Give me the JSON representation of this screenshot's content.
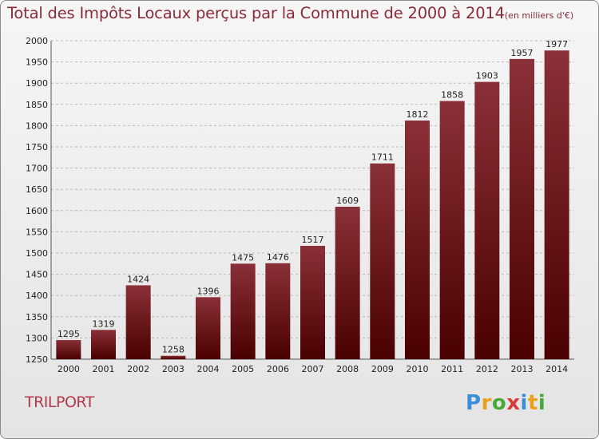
{
  "header": {
    "title": "Total des Impôts Locaux perçus par la Commune de 2000 à 2014",
    "unit": "(en milliers d'€)"
  },
  "footer": {
    "commune": "TRILPORT",
    "brand": [
      "P",
      "r",
      "o",
      "x",
      "i",
      "t",
      "i"
    ],
    "brand_colors": [
      "#3a8fd8",
      "#e9a21b",
      "#4aa83a",
      "#d83a3a",
      "#3a8fd8",
      "#e9a21b",
      "#4aa83a"
    ]
  },
  "colors": {
    "bar_light": "#8a3038",
    "bar_dark": "#4a0000",
    "grid": "#b9b9b9"
  },
  "chart_data": {
    "type": "bar",
    "title": "Total des Impôts Locaux perçus par la Commune de 2000 à 2014",
    "xlabel": "",
    "ylabel": "en milliers d'€",
    "categories": [
      "2000",
      "2001",
      "2002",
      "2003",
      "2004",
      "2005",
      "2006",
      "2007",
      "2008",
      "2009",
      "2010",
      "2011",
      "2012",
      "2013",
      "2014"
    ],
    "values": [
      1295,
      1319,
      1424,
      1258,
      1396,
      1475,
      1476,
      1517,
      1609,
      1711,
      1812,
      1858,
      1903,
      1957,
      1977
    ],
    "ylim": [
      1250,
      2000
    ],
    "yticks": [
      1250,
      1300,
      1350,
      1400,
      1450,
      1500,
      1550,
      1600,
      1650,
      1700,
      1750,
      1800,
      1850,
      1900,
      1950,
      2000
    ],
    "grid": true
  }
}
